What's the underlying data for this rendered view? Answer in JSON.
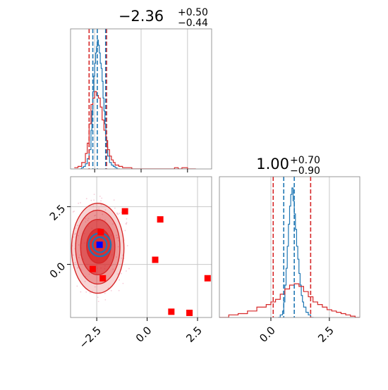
{
  "chart_data": [
    {
      "type": "histogram",
      "panel": "top-left",
      "title": {
        "base": "−2.36",
        "sup": "+0.50",
        "sub": "−0.44"
      },
      "xlim": [
        -3.8,
        3.8
      ],
      "xticks": [
        -2.5,
        0.0,
        2.5
      ],
      "grid": true,
      "vlines": {
        "red": [
          -2.8,
          -1.86
        ],
        "blue": [
          -2.6,
          -2.36,
          -1.91
        ]
      },
      "series": [
        {
          "color": "#1f77b4",
          "x": [
            -3.3,
            -3.2,
            -3.1,
            -3.0,
            -2.9,
            -2.8,
            -2.7,
            -2.65,
            -2.6,
            -2.55,
            -2.5,
            -2.45,
            -2.4,
            -2.35,
            -2.3,
            -2.25,
            -2.2,
            -2.15,
            -2.1,
            -2.05,
            -2.0,
            -1.95,
            -1.9,
            -1.85,
            -1.8,
            -1.7,
            -1.6,
            -1.5,
            -1.4,
            -1.3
          ],
          "y": [
            0.0,
            0.01,
            0.02,
            0.04,
            0.08,
            0.15,
            0.3,
            0.45,
            0.6,
            0.72,
            0.82,
            0.9,
            0.95,
            1.0,
            0.96,
            0.9,
            0.82,
            0.78,
            0.68,
            0.55,
            0.45,
            0.35,
            0.25,
            0.17,
            0.1,
            0.05,
            0.03,
            0.02,
            0.01,
            0.0
          ]
        },
        {
          "color": "#d62728",
          "x": [
            -3.6,
            -3.4,
            -3.2,
            -3.0,
            -2.9,
            -2.8,
            -2.7,
            -2.6,
            -2.5,
            -2.4,
            -2.3,
            -2.2,
            -2.1,
            -2.0,
            -1.9,
            -1.8,
            -1.7,
            -1.6,
            -1.5,
            -1.4,
            -1.2,
            -1.0,
            -0.5,
            0.0,
            1.0,
            1.8,
            2.0,
            2.2,
            2.5,
            2.8
          ],
          "y": [
            0.01,
            0.02,
            0.05,
            0.12,
            0.2,
            0.35,
            0.5,
            0.55,
            0.6,
            0.57,
            0.55,
            0.48,
            0.38,
            0.3,
            0.22,
            0.15,
            0.1,
            0.07,
            0.05,
            0.03,
            0.02,
            0.01,
            0.0,
            0.0,
            0.0,
            0.01,
            0.0,
            0.01,
            0.0,
            0.0
          ]
        }
      ]
    },
    {
      "type": "histogram",
      "panel": "bottom-right",
      "title": {
        "base": "1.00",
        "sup": "+0.70",
        "sub": "−0.90"
      },
      "xlim": [
        -2.2,
        3.8
      ],
      "xticks": [
        0.0,
        2.5
      ],
      "grid": true,
      "vlines": {
        "red": [
          0.1,
          1.7
        ],
        "blue": [
          0.55,
          1.0
        ]
      },
      "series": [
        {
          "color": "#1f77b4",
          "x": [
            0.3,
            0.4,
            0.5,
            0.55,
            0.6,
            0.65,
            0.7,
            0.75,
            0.8,
            0.85,
            0.9,
            0.95,
            1.0,
            1.05,
            1.1,
            1.15,
            1.2,
            1.25,
            1.3,
            1.35,
            1.4,
            1.5,
            1.6,
            1.7
          ],
          "y": [
            0.0,
            0.02,
            0.05,
            0.12,
            0.25,
            0.38,
            0.55,
            0.72,
            0.86,
            0.95,
            1.0,
            0.9,
            0.8,
            0.68,
            0.55,
            0.45,
            0.34,
            0.25,
            0.17,
            0.12,
            0.08,
            0.04,
            0.02,
            0.0
          ]
        },
        {
          "color": "#d62728",
          "x": [
            -2.2,
            -1.8,
            -1.4,
            -1.0,
            -0.6,
            -0.2,
            0.0,
            0.2,
            0.4,
            0.6,
            0.8,
            1.0,
            1.2,
            1.4,
            1.6,
            1.8,
            2.0,
            2.2,
            2.4,
            2.6,
            2.8,
            3.0,
            3.2,
            3.4,
            3.6,
            3.8
          ],
          "y": [
            0.0,
            0.02,
            0.03,
            0.05,
            0.08,
            0.1,
            0.12,
            0.14,
            0.18,
            0.22,
            0.25,
            0.26,
            0.24,
            0.2,
            0.16,
            0.12,
            0.1,
            0.08,
            0.06,
            0.05,
            0.04,
            0.03,
            0.02,
            0.01,
            0.0,
            0.0
          ]
        }
      ]
    },
    {
      "type": "scatter",
      "panel": "bottom-left",
      "xlim": [
        -3.8,
        3.2
      ],
      "ylim": [
        -2.3,
        3.8
      ],
      "xticks": [
        -2.5,
        0.0,
        2.5
      ],
      "yticks": [
        0.0,
        2.5
      ],
      "grid": true,
      "contours": {
        "red_levels": [
          {
            "cx": -2.45,
            "cy": 0.7,
            "rx": 1.3,
            "ry": 1.95,
            "opacity": 0.2
          },
          {
            "cx": -2.45,
            "cy": 0.75,
            "rx": 1.1,
            "ry": 1.6,
            "opacity": 0.35
          },
          {
            "cx": -2.45,
            "cy": 0.75,
            "rx": 0.85,
            "ry": 1.2,
            "opacity": 0.55
          },
          {
            "cx": -2.4,
            "cy": 0.8,
            "rx": 0.6,
            "ry": 0.75,
            "opacity": 0.8
          }
        ],
        "blue_levels": [
          {
            "cx": -2.35,
            "cy": 0.85,
            "rx": 0.55,
            "ry": 0.5
          },
          {
            "cx": -2.35,
            "cy": 0.85,
            "rx": 0.35,
            "ry": 0.33
          }
        ]
      },
      "red_markers": [
        {
          "x": -1.1,
          "y": 2.3
        },
        {
          "x": 0.65,
          "y": 1.95
        },
        {
          "x": -2.3,
          "y": 1.4
        },
        {
          "x": 0.4,
          "y": 0.2
        },
        {
          "x": -2.7,
          "y": -0.2
        },
        {
          "x": -2.2,
          "y": -0.6
        },
        {
          "x": 3.0,
          "y": -0.6
        },
        {
          "x": 1.2,
          "y": -2.05
        },
        {
          "x": 2.1,
          "y": -2.1
        }
      ],
      "blue_marker": {
        "x": -2.36,
        "y": 0.85
      }
    }
  ]
}
